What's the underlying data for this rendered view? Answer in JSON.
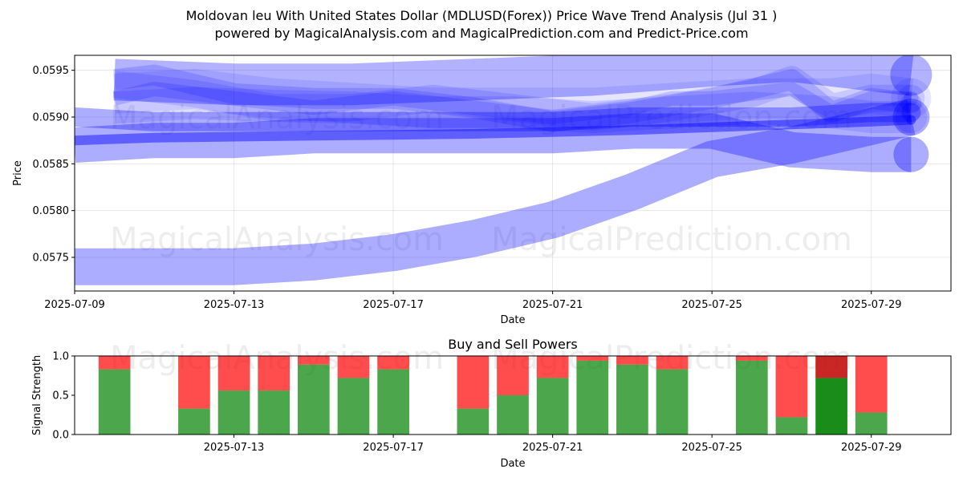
{
  "title_line1": "Moldovan leu With United States Dollar (MDLUSD(Forex)) Price Wave Trend Analysis (Jul 31 )",
  "title_line2": "powered by MagicalAnalysis.com and MagicalPrediction.com and Predict-Price.com",
  "watermarks": [
    "MagicalAnalysis.com",
    "MagicalPrediction.com"
  ],
  "colors": {
    "wave": "#0000ff",
    "buy": "#008000",
    "sell": "#ff0000",
    "grid": "#b0b0b0"
  },
  "chart_data": [
    {
      "type": "line",
      "title": "",
      "xlabel": "Date",
      "ylabel": "Price",
      "x_tick_labels": [
        "2025-07-09",
        "2025-07-13",
        "2025-07-17",
        "2025-07-21",
        "2025-07-25",
        "2025-07-29"
      ],
      "y_tick_labels": [
        "0.0575",
        "0.0580",
        "0.0585",
        "0.0590",
        "0.0595"
      ],
      "xlim": [
        "2025-07-09",
        "2025-07-31"
      ],
      "ylim": [
        0.05714,
        0.05966
      ],
      "grid": true,
      "series": [
        {
          "x": [
            "2025-07-09",
            "2025-07-11",
            "2025-07-13",
            "2025-07-15",
            "2025-07-17",
            "2025-07-19",
            "2025-07-21",
            "2025-07-23",
            "2025-07-25",
            "2025-07-27",
            "2025-07-29",
            "2025-07-30"
          ],
          "values": [
            0.0574,
            0.0574,
            0.0574,
            0.05745,
            0.05755,
            0.0577,
            0.0579,
            0.0582,
            0.05855,
            0.0587,
            0.0589,
            0.059
          ],
          "width": 46,
          "opacity": 0.32
        },
        {
          "x": [
            "2025-07-09",
            "2025-07-11",
            "2025-07-13",
            "2025-07-15",
            "2025-07-17",
            "2025-07-19",
            "2025-07-21",
            "2025-07-23",
            "2025-07-25",
            "2025-07-27",
            "2025-07-29",
            "2025-07-30"
          ],
          "values": [
            0.0587,
            0.05875,
            0.05875,
            0.0588,
            0.0588,
            0.0588,
            0.0588,
            0.05885,
            0.05885,
            0.05865,
            0.0586,
            0.0586
          ],
          "width": 44,
          "opacity": 0.32
        },
        {
          "x": [
            "2025-07-09",
            "2025-07-11",
            "2025-07-13",
            "2025-07-15",
            "2025-07-17",
            "2025-07-19",
            "2025-07-21",
            "2025-07-23",
            "2025-07-25",
            "2025-07-27",
            "2025-07-29",
            "2025-07-30"
          ],
          "values": [
            0.059,
            0.05895,
            0.05895,
            0.05895,
            0.05895,
            0.05895,
            0.05895,
            0.059,
            0.059,
            0.059,
            0.05905,
            0.05905
          ],
          "width": 24,
          "opacity": 0.32
        },
        {
          "x": [
            "2025-07-09",
            "2025-07-11",
            "2025-07-13",
            "2025-07-15",
            "2025-07-17",
            "2025-07-19",
            "2025-07-21",
            "2025-07-23",
            "2025-07-25",
            "2025-07-27",
            "2025-07-29",
            "2025-07-30"
          ],
          "values": [
            0.05875,
            0.05878,
            0.05879,
            0.0588,
            0.05881,
            0.05882,
            0.05884,
            0.05886,
            0.05889,
            0.05892,
            0.05895,
            0.05897
          ],
          "width": 12,
          "opacity": 0.45
        },
        {
          "x": [
            "2025-07-10",
            "2025-07-11",
            "2025-07-13",
            "2025-07-15",
            "2025-07-17",
            "2025-07-19",
            "2025-07-21",
            "2025-07-23",
            "2025-07-25",
            "2025-07-27",
            "2025-07-28",
            "2025-07-29",
            "2025-07-30"
          ],
          "values": [
            0.0594,
            0.05945,
            0.05925,
            0.0592,
            0.0592,
            0.0591,
            0.05895,
            0.05905,
            0.0592,
            0.0594,
            0.05905,
            0.0592,
            0.05915
          ],
          "width": 26,
          "opacity": 0.16
        },
        {
          "x": [
            "2025-07-10",
            "2025-07-11",
            "2025-07-13",
            "2025-07-15",
            "2025-07-17",
            "2025-07-19",
            "2025-07-21",
            "2025-07-23",
            "2025-07-24",
            "2025-07-25",
            "2025-07-27",
            "2025-07-28",
            "2025-07-29",
            "2025-07-30"
          ],
          "values": [
            0.0592,
            0.0593,
            0.0592,
            0.0591,
            0.0592,
            0.0591,
            0.059,
            0.0591,
            0.0592,
            0.0592,
            0.0593,
            0.05905,
            0.0592,
            0.0592
          ],
          "width": 18,
          "opacity": 0.16
        },
        {
          "x": [
            "2025-07-10",
            "2025-07-12",
            "2025-07-14",
            "2025-07-16",
            "2025-07-18",
            "2025-07-20",
            "2025-07-22",
            "2025-07-24",
            "2025-07-26",
            "2025-07-27",
            "2025-07-28",
            "2025-07-29",
            "2025-07-30"
          ],
          "values": [
            0.05935,
            0.05925,
            0.0591,
            0.0591,
            0.0592,
            0.0591,
            0.059,
            0.0591,
            0.05925,
            0.0594,
            0.0591,
            0.0592,
            0.0592
          ],
          "width": 34,
          "opacity": 0.12
        },
        {
          "x": [
            "2025-07-10",
            "2025-07-12",
            "2025-07-14",
            "2025-07-16",
            "2025-07-18",
            "2025-07-20",
            "2025-07-22",
            "2025-07-24",
            "2025-07-26",
            "2025-07-28",
            "2025-07-29",
            "2025-07-30"
          ],
          "values": [
            0.0591,
            0.05915,
            0.05912,
            0.0591,
            0.05905,
            0.05905,
            0.059,
            0.05905,
            0.0591,
            0.05905,
            0.059,
            0.059
          ],
          "width": 40,
          "opacity": 0.12
        },
        {
          "x": [
            "2025-07-10",
            "2025-07-12",
            "2025-07-14",
            "2025-07-16",
            "2025-07-18",
            "2025-07-20",
            "2025-07-22",
            "2025-07-24",
            "2025-07-26",
            "2025-07-28",
            "2025-07-29",
            "2025-07-30"
          ],
          "values": [
            0.05925,
            0.0593,
            0.0592,
            0.05915,
            0.0591,
            0.0591,
            0.0591,
            0.05915,
            0.0592,
            0.0592,
            0.05925,
            0.0592
          ],
          "width": 50,
          "opacity": 0.1
        },
        {
          "x": [
            "2025-07-10",
            "2025-07-13",
            "2025-07-16",
            "2025-07-19",
            "2025-07-22",
            "2025-07-25",
            "2025-07-27",
            "2025-07-29",
            "2025-07-30"
          ],
          "values": [
            0.0594,
            0.05935,
            0.05935,
            0.0594,
            0.05945,
            0.05955,
            0.0596,
            0.0595,
            0.05945
          ],
          "width": 52,
          "opacity": 0.3
        }
      ]
    },
    {
      "type": "bar",
      "title": "Buy and Sell Powers",
      "xlabel": "Date",
      "ylabel": "Signal Strength",
      "x_tick_labels": [
        "2025-07-13",
        "2025-07-17",
        "2025-07-21",
        "2025-07-25",
        "2025-07-29"
      ],
      "y_tick_labels": [
        "0.0",
        "0.5",
        "1.0"
      ],
      "xlim": [
        "2025-07-09",
        "2025-07-31"
      ],
      "ylim": [
        0,
        1
      ],
      "stacked": true,
      "categories": [
        "2025-07-10",
        "2025-07-12",
        "2025-07-13",
        "2025-07-14",
        "2025-07-15",
        "2025-07-16",
        "2025-07-17",
        "2025-07-19",
        "2025-07-20",
        "2025-07-21",
        "2025-07-22",
        "2025-07-23",
        "2025-07-24",
        "2025-07-26",
        "2025-07-27",
        "2025-07-28",
        "2025-07-29"
      ],
      "series": [
        {
          "name": "Buy",
          "values": [
            0.83,
            0.33,
            0.56,
            0.56,
            0.89,
            0.72,
            0.83,
            0.33,
            0.5,
            0.72,
            0.94,
            0.89,
            0.83,
            0.94,
            0.22,
            0.72,
            0.28
          ]
        },
        {
          "name": "Sell",
          "values": [
            0.17,
            0.67,
            0.44,
            0.44,
            0.11,
            0.28,
            0.17,
            0.67,
            0.5,
            0.28,
            0.06,
            0.11,
            0.17,
            0.06,
            0.78,
            0.28,
            0.72
          ]
        }
      ],
      "highlight_category": "2025-07-28"
    }
  ]
}
